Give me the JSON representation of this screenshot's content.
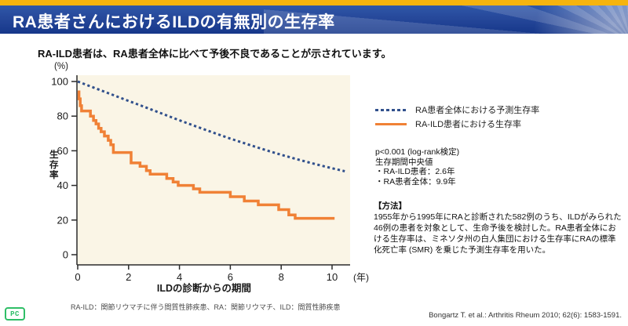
{
  "header": {
    "title": "RA患者さんにおけるILDの有無別の生存率"
  },
  "subtitle": "RA-ILD患者は、RA患者全体に比べて予後不良であることが示されています。",
  "chart_data": {
    "type": "line",
    "xlabel": "ILDの診断からの期間",
    "xunit": "(年)",
    "ylabel": "生存率",
    "yunit": "(%)",
    "xlim": [
      0,
      10.7
    ],
    "ylim": [
      0,
      100
    ],
    "xticks": [
      0,
      2,
      4,
      6,
      8,
      10
    ],
    "yticks": [
      0,
      20,
      40,
      60,
      80,
      100
    ],
    "grid": false,
    "legend_position": "right-top",
    "plot_bg": "#faf5e6",
    "axis_color": "#2b2b2b",
    "series": [
      {
        "name": "RA患者全体における予測生存率",
        "color": "#31508c",
        "style": "dotted",
        "points": [
          [
            0,
            100
          ],
          [
            0.5,
            97.2
          ],
          [
            1,
            94.4
          ],
          [
            1.5,
            91.6
          ],
          [
            2,
            88.8
          ],
          [
            2.5,
            86
          ],
          [
            3,
            83.2
          ],
          [
            3.5,
            80.4
          ],
          [
            4,
            77.6
          ],
          [
            4.5,
            74.9
          ],
          [
            5,
            72.2
          ],
          [
            5.5,
            69.6
          ],
          [
            6,
            67
          ],
          [
            6.5,
            64.6
          ],
          [
            7,
            62.2
          ],
          [
            7.5,
            59.9
          ],
          [
            8,
            57.7
          ],
          [
            8.5,
            55.6
          ],
          [
            9,
            53.6
          ],
          [
            9.5,
            51.7
          ],
          [
            10,
            49.9
          ],
          [
            10.5,
            48.2
          ]
        ]
      },
      {
        "name": "RA-ILD患者における生存率",
        "color": "#f08136",
        "style": "solid-step",
        "points": [
          [
            0,
            94
          ],
          [
            0.05,
            94
          ],
          [
            0.05,
            90
          ],
          [
            0.1,
            90
          ],
          [
            0.1,
            86
          ],
          [
            0.15,
            86
          ],
          [
            0.15,
            83
          ],
          [
            0.5,
            83
          ],
          [
            0.5,
            80
          ],
          [
            0.62,
            80
          ],
          [
            0.62,
            77.5
          ],
          [
            0.72,
            77.5
          ],
          [
            0.72,
            75.5
          ],
          [
            0.82,
            75.5
          ],
          [
            0.82,
            73
          ],
          [
            0.92,
            73
          ],
          [
            0.92,
            71
          ],
          [
            1.05,
            71
          ],
          [
            1.05,
            68.5
          ],
          [
            1.2,
            68.5
          ],
          [
            1.2,
            66
          ],
          [
            1.3,
            66
          ],
          [
            1.3,
            63.5
          ],
          [
            1.4,
            63.5
          ],
          [
            1.4,
            59
          ],
          [
            2.1,
            59
          ],
          [
            2.1,
            53
          ],
          [
            2.45,
            53
          ],
          [
            2.45,
            51
          ],
          [
            2.7,
            51
          ],
          [
            2.7,
            48.5
          ],
          [
            2.85,
            48.5
          ],
          [
            2.85,
            46.5
          ],
          [
            3.5,
            46.5
          ],
          [
            3.5,
            44
          ],
          [
            3.75,
            44
          ],
          [
            3.75,
            42
          ],
          [
            3.95,
            42
          ],
          [
            3.95,
            40
          ],
          [
            4.55,
            40
          ],
          [
            4.55,
            38
          ],
          [
            4.8,
            38
          ],
          [
            4.8,
            36
          ],
          [
            6.0,
            36
          ],
          [
            6.0,
            33.5
          ],
          [
            6.55,
            33.5
          ],
          [
            6.55,
            31
          ],
          [
            7.1,
            31
          ],
          [
            7.1,
            28.8
          ],
          [
            7.9,
            28.8
          ],
          [
            7.9,
            26
          ],
          [
            8.3,
            26
          ],
          [
            8.3,
            23
          ],
          [
            8.55,
            23
          ],
          [
            8.55,
            21
          ],
          [
            10.1,
            21
          ]
        ]
      }
    ]
  },
  "stats": {
    "lines": [
      "p<0.001 (log-rank検定)",
      "生存期間中央値",
      "・RA-ILD患者：2.6年",
      "・RA患者全体：9.9年"
    ]
  },
  "method": {
    "heading": "【方法】",
    "body": "1955年から1995年にRAと診断された582例のうち、ILDがみられた46例の患者を対象として、生命予後を検討した。RA患者全体における生存率は、ミネソタ州の白人集団における生存率にRAの標準化死亡率 (SMR) を乗じた予測生存率を用いた。"
  },
  "footnote": "RA-ILD：関節リウマチに伴う間質性肺疾患、RA：関節リウマチ、ILD：間質性肺疾患",
  "citation": "Bongartz T. et al.: Arthritis Rheum 2010; 62(6): 1583-1591.",
  "logo": {
    "text": "PC",
    "color": "#2fbe67"
  }
}
